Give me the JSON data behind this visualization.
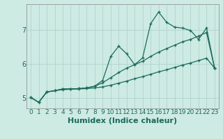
{
  "xlabel": "Humidex (Indice chaleur)",
  "xlim": [
    -0.5,
    23.5
  ],
  "ylim": [
    4.7,
    7.75
  ],
  "yticks": [
    5,
    6,
    7
  ],
  "xticks": [
    0,
    1,
    2,
    3,
    4,
    5,
    6,
    7,
    8,
    9,
    10,
    11,
    12,
    13,
    14,
    15,
    16,
    17,
    18,
    19,
    20,
    21,
    22,
    23
  ],
  "bg_color": "#cdeae3",
  "grid_color": "#b0d4cc",
  "line_color": "#1a6b5a",
  "line1_x": [
    0,
    1,
    2,
    3,
    4,
    5,
    6,
    7,
    8,
    9,
    10,
    11,
    12,
    13,
    14,
    15,
    16,
    17,
    18,
    19,
    20,
    21,
    22,
    23
  ],
  "line1_y": [
    5.02,
    4.88,
    5.18,
    5.22,
    5.27,
    5.27,
    5.28,
    5.3,
    5.35,
    5.52,
    6.22,
    6.52,
    6.3,
    5.98,
    6.18,
    7.18,
    7.52,
    7.22,
    7.08,
    7.05,
    6.98,
    6.72,
    7.05,
    5.88
  ],
  "line2_x": [
    0,
    1,
    2,
    3,
    4,
    5,
    6,
    7,
    8,
    9,
    10,
    11,
    12,
    13,
    14,
    15,
    16,
    17,
    18,
    19,
    20,
    21,
    22,
    23
  ],
  "line2_y": [
    5.02,
    4.88,
    5.18,
    5.22,
    5.27,
    5.27,
    5.28,
    5.3,
    5.35,
    5.45,
    5.6,
    5.75,
    5.88,
    5.98,
    6.08,
    6.22,
    6.35,
    6.45,
    6.55,
    6.65,
    6.72,
    6.82,
    6.92,
    5.88
  ],
  "line3_x": [
    0,
    1,
    2,
    3,
    4,
    5,
    6,
    7,
    8,
    9,
    10,
    11,
    12,
    13,
    14,
    15,
    16,
    17,
    18,
    19,
    20,
    21,
    22,
    23
  ],
  "line3_y": [
    5.02,
    4.88,
    5.18,
    5.22,
    5.25,
    5.26,
    5.27,
    5.28,
    5.3,
    5.33,
    5.38,
    5.44,
    5.5,
    5.57,
    5.63,
    5.7,
    5.77,
    5.83,
    5.9,
    5.97,
    6.03,
    6.1,
    6.17,
    5.88
  ],
  "tick_fontsize": 6.5,
  "label_fontsize": 8
}
